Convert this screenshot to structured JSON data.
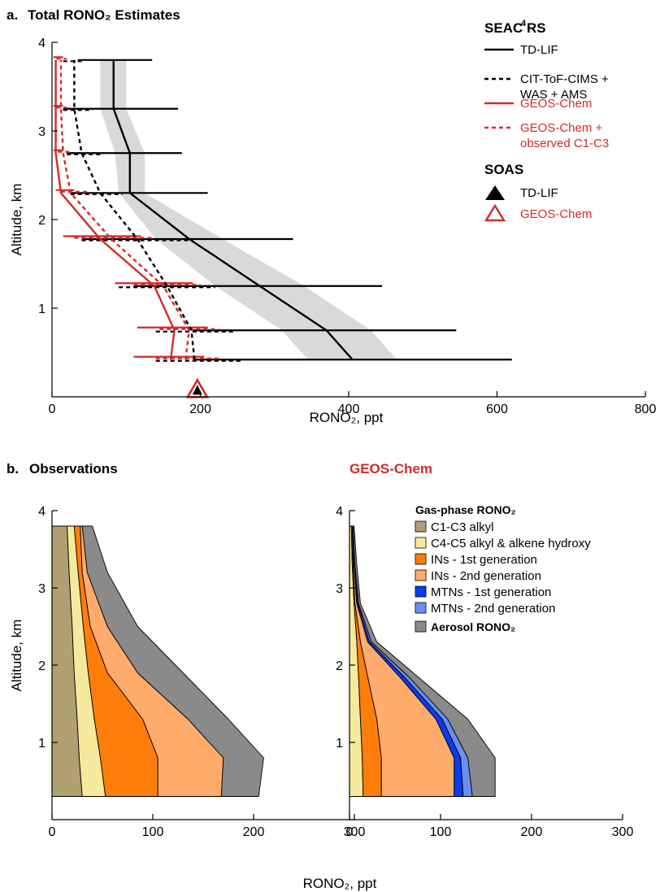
{
  "chart_data": [
    {
      "type": "line",
      "title": "Total RONO₂ Estimates",
      "panel_label": "a.",
      "xlabel": "RONO₂, ppt",
      "ylabel": "Altitude, km",
      "xlim": [
        0,
        800
      ],
      "ylim": [
        0,
        4
      ],
      "xticks": [
        0,
        200,
        400,
        600,
        800
      ],
      "yticks": [
        1,
        2,
        3,
        4
      ],
      "grid": false,
      "legend": {
        "placement": "right",
        "groups": [
          {
            "title": "SEAC⁴RS",
            "entries": [
              {
                "label": "TD-LIF",
                "color": "#000000",
                "style": "solid"
              },
              {
                "label": "CIT-ToF-CIMS +",
                "label2": "WAS + AMS",
                "color": "#000000",
                "style": "dashed"
              },
              {
                "label": "GEOS-Chem",
                "color": "#d42a2a",
                "style": "solid"
              },
              {
                "label": "GEOS-Chem +",
                "label2": "observed C1-C3",
                "color": "#d42a2a",
                "style": "dashed"
              }
            ]
          },
          {
            "title": "SOAS",
            "entries": [
              {
                "label": "TD-LIF",
                "color": "#000000",
                "marker": "filled-triangle"
              },
              {
                "label": "GEOS-Chem",
                "color": "#d42a2a",
                "marker": "open-triangle"
              }
            ]
          }
        ]
      },
      "series": [
        {
          "name": "TD-LIF",
          "color": "#000000",
          "style": "solid",
          "x": [
            405,
            370,
            280,
            185,
            105,
            105,
            83,
            83
          ],
          "y": [
            0.42,
            0.75,
            1.25,
            1.78,
            2.3,
            2.75,
            3.25,
            3.8
          ],
          "range_low": [
            190,
            190,
            110,
            40,
            25,
            20,
            15,
            35
          ],
          "range_high": [
            620,
            545,
            445,
            325,
            210,
            175,
            170,
            135
          ],
          "shade_low": [
            345,
            310,
            220,
            140,
            90,
            85,
            65,
            65
          ],
          "shade_high": [
            465,
            430,
            340,
            230,
            125,
            125,
            100,
            100
          ]
        },
        {
          "name": "CIT-ToF-CIMS + WAS + AMS",
          "color": "#000000",
          "style": "dashed",
          "x": [
            192,
            188,
            155,
            115,
            65,
            40,
            30,
            30
          ],
          "y": [
            0.42,
            0.75,
            1.25,
            1.78,
            2.3,
            2.75,
            3.25,
            3.8
          ],
          "range_low": [
            140,
            140,
            90,
            40,
            25,
            20,
            15,
            15
          ],
          "range_high": [
            255,
            245,
            220,
            185,
            95,
            65,
            55,
            40
          ]
        },
        {
          "name": "GEOS-Chem",
          "color": "#d42a2a",
          "style": "solid",
          "x": [
            160,
            165,
            138,
            65,
            12,
            5,
            5,
            5
          ],
          "y": [
            0.42,
            0.75,
            1.25,
            1.78,
            2.3,
            2.75,
            3.25,
            3.8
          ],
          "range_low": [
            110,
            115,
            85,
            15,
            5,
            2,
            2,
            2
          ],
          "range_high": [
            205,
            210,
            190,
            120,
            30,
            15,
            15,
            15
          ]
        },
        {
          "name": "GEOS-Chem + observed C1-C3",
          "color": "#d42a2a",
          "style": "dashed",
          "x": [
            180,
            185,
            150,
            80,
            25,
            15,
            12,
            12
          ],
          "y": [
            0.42,
            0.75,
            1.25,
            1.78,
            2.3,
            2.75,
            3.25,
            3.8
          ],
          "range_low": [
            140,
            145,
            110,
            30,
            12,
            8,
            6,
            6
          ],
          "range_high": [
            225,
            225,
            200,
            135,
            50,
            25,
            20,
            20
          ]
        }
      ],
      "points": [
        {
          "name": "SOAS TD-LIF",
          "x": 196,
          "y": 0.07,
          "marker": "filled-triangle",
          "color": "#000000"
        },
        {
          "name": "SOAS GEOS-Chem",
          "x": 196,
          "y": 0.07,
          "marker": "open-triangle",
          "color": "#d42a2a"
        }
      ]
    },
    {
      "type": "area",
      "title": "Observations",
      "panel_label": "b.",
      "xlabel": "RONO₂, ppt",
      "ylabel": "Altitude, km",
      "xlim": [
        0,
        300
      ],
      "ylim": [
        0,
        4
      ],
      "xticks": [
        0,
        100,
        200,
        300
      ],
      "yticks": [
        1,
        2,
        3,
        4
      ],
      "grid": false,
      "y": [
        0.3,
        0.8,
        1.3,
        1.9,
        2.5,
        3.2,
        3.8
      ],
      "cumulative_boundaries": [
        {
          "name": "C1-C3 alkyl",
          "color": "#b09f70",
          "x": [
            30,
            27,
            25,
            22,
            20,
            17,
            15
          ]
        },
        {
          "name": "C4-C5 alkyl & alkene hydroxy",
          "color": "#f7e99c",
          "x": [
            53,
            48,
            42,
            36,
            31,
            26,
            22
          ]
        },
        {
          "name": "INs - 1st generation",
          "color": "#ff7d0a",
          "x": [
            105,
            105,
            90,
            55,
            38,
            30,
            28
          ]
        },
        {
          "name": "INs - 2nd generation",
          "color": "#ffab6b",
          "x": [
            168,
            170,
            135,
            85,
            55,
            35,
            30
          ]
        },
        {
          "name": "Aerosol RONO₂",
          "color": "#8a8a8a",
          "x": [
            205,
            210,
            175,
            130,
            85,
            55,
            40
          ]
        }
      ]
    },
    {
      "type": "area",
      "title": "GEOS-Chem",
      "title_color": "#d42a2a",
      "xlabel": "RONO₂, ppt",
      "xlim": [
        0,
        300
      ],
      "ylim": [
        0,
        4
      ],
      "xticks": [
        0,
        100,
        200,
        300
      ],
      "yticks": [
        1,
        2,
        3,
        4
      ],
      "grid": false,
      "y": [
        0.3,
        0.8,
        1.3,
        1.85,
        2.3,
        2.8,
        3.3,
        3.8
      ],
      "cumulative_boundaries": [
        {
          "name": "C1-C3 alkyl",
          "color": "#b09f70",
          "x": [
            0,
            0,
            0,
            0,
            0,
            0,
            0,
            0
          ]
        },
        {
          "name": "C4-C5 alkyl & alkene hydroxy",
          "color": "#f7e99c",
          "x": [
            15,
            14,
            12,
            10,
            8,
            5,
            3,
            2
          ]
        },
        {
          "name": "INs - 1st generation",
          "color": "#ff7d0a",
          "x": [
            35,
            35,
            30,
            20,
            12,
            6,
            4,
            3
          ]
        },
        {
          "name": "INs - 2nd generation",
          "color": "#ffab6b",
          "x": [
            115,
            115,
            95,
            55,
            20,
            8,
            5,
            3
          ]
        },
        {
          "name": "MTNs - 1st generation",
          "color": "#0a3cf0",
          "x": [
            125,
            122,
            102,
            60,
            22,
            9,
            5,
            3
          ]
        },
        {
          "name": "MTNs - 2nd generation",
          "color": "#6a8ff2",
          "x": [
            135,
            130,
            108,
            65,
            24,
            10,
            6,
            4
          ]
        },
        {
          "name": "Aerosol RONO₂",
          "color": "#8a8a8a",
          "x": [
            160,
            160,
            130,
            75,
            30,
            12,
            8,
            5
          ]
        }
      ],
      "legend": {
        "title": "Gas-phase RONO₂",
        "entries": [
          {
            "label": "C1-C3 alkyl",
            "color": "#b09f70"
          },
          {
            "label": "C4-C5 alkyl & alkene hydroxy",
            "color": "#f7e99c"
          },
          {
            "label": "INs - 1st generation",
            "color": "#ff7d0a"
          },
          {
            "label": "INs - 2nd generation",
            "color": "#ffab6b"
          },
          {
            "label": "MTNs - 1st generation",
            "color": "#0a3cf0"
          },
          {
            "label": "MTNs - 2nd generation",
            "color": "#6a8ff2"
          }
        ],
        "extra": {
          "label": "Aerosol RONO₂",
          "color": "#8a8a8a"
        }
      }
    }
  ]
}
